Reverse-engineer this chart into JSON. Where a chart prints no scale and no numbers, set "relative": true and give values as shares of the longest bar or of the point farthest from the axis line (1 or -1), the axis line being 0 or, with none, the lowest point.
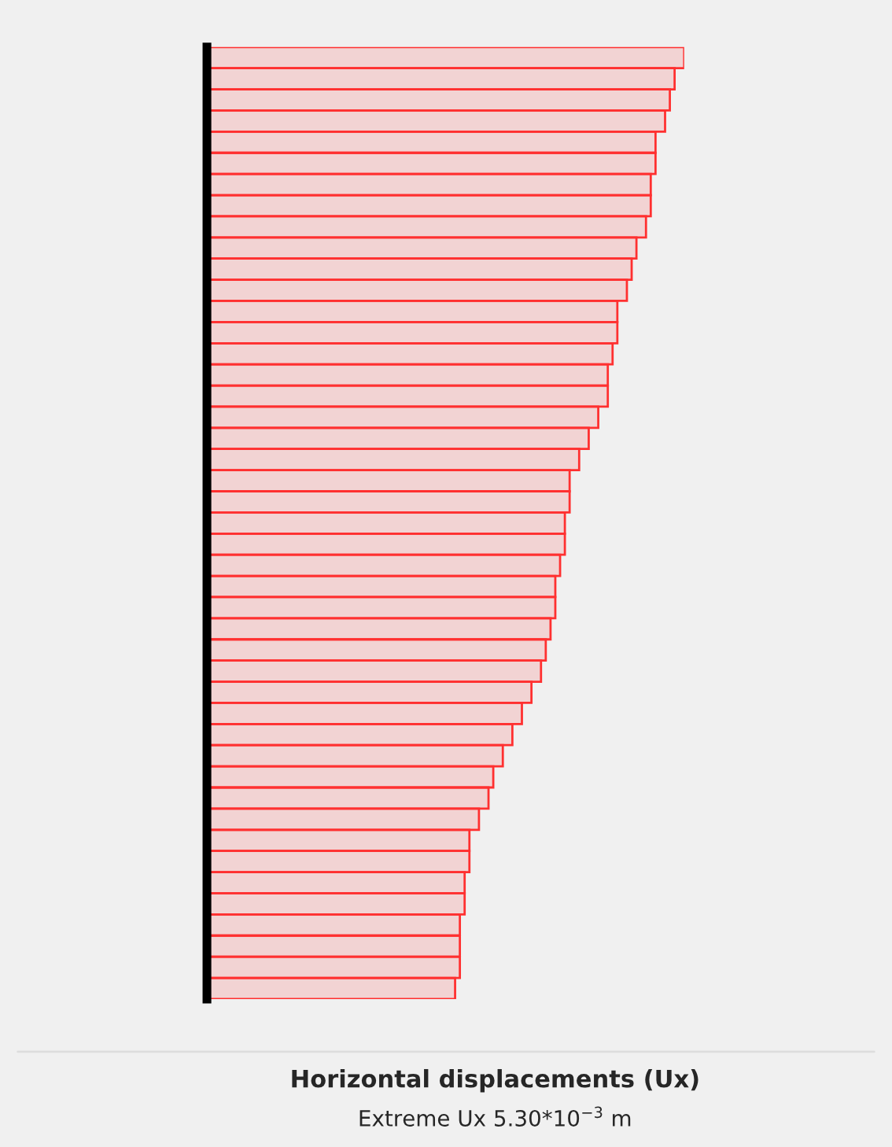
{
  "chart_data": {
    "type": "bar",
    "orientation": "horizontal",
    "relative": true,
    "title": "Horizontal displacements (Ux)",
    "annotations": [
      "Extreme Ux 5.30*10$^{−3}$ m"
    ],
    "categories": [
      null,
      null,
      null,
      null,
      null,
      null,
      null,
      null,
      null,
      null,
      null,
      null,
      null,
      null,
      null,
      null,
      null,
      null,
      null,
      null,
      null,
      null,
      null,
      null,
      null,
      null,
      null,
      null,
      null,
      null,
      null,
      null,
      null,
      null,
      null,
      null,
      null,
      null,
      null,
      null,
      null,
      null,
      null,
      null,
      null
    ],
    "values": [
      1.0,
      0.98,
      0.97,
      0.96,
      0.94,
      0.94,
      0.93,
      0.93,
      0.92,
      0.9,
      0.89,
      0.88,
      0.86,
      0.86,
      0.85,
      0.84,
      0.84,
      0.82,
      0.8,
      0.78,
      0.76,
      0.76,
      0.75,
      0.75,
      0.74,
      0.73,
      0.73,
      0.72,
      0.71,
      0.7,
      0.68,
      0.66,
      0.64,
      0.62,
      0.6,
      0.59,
      0.57,
      0.55,
      0.55,
      0.54,
      0.54,
      0.53,
      0.53,
      0.53,
      0.52
    ],
    "color": "#ff3030",
    "grid": false,
    "legend": false
  }
}
